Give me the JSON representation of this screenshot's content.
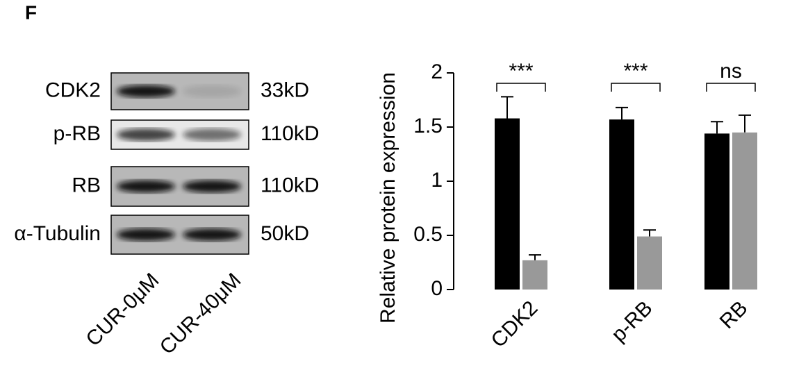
{
  "panel_label": "F",
  "blot": {
    "rows": [
      {
        "label": "CDK2",
        "size": "33kD"
      },
      {
        "label": "p-RB",
        "size": "110kD"
      },
      {
        "label": "RB",
        "size": "110kD"
      },
      {
        "label": "α-Tubulin",
        "size": "50kD"
      }
    ],
    "lanes": [
      "CUR-0μM",
      "CUR-40μM"
    ]
  },
  "chart_data": {
    "type": "bar",
    "y_label": "Relative protein expression",
    "categories": [
      "CDK2",
      "p-RB",
      "RB"
    ],
    "series": [
      {
        "color": "#000000",
        "values": [
          1.58,
          1.57,
          1.44
        ],
        "errors": [
          0.2,
          0.11,
          0.11
        ]
      },
      {
        "color": "#999999",
        "values": [
          0.27,
          0.49,
          1.45
        ],
        "errors": [
          0.05,
          0.06,
          0.16
        ]
      }
    ],
    "annotations": [
      "***",
      "***",
      "ns"
    ],
    "ylim": [
      0,
      2
    ],
    "yticks": [
      0,
      0.5,
      1,
      1.5,
      2
    ]
  }
}
